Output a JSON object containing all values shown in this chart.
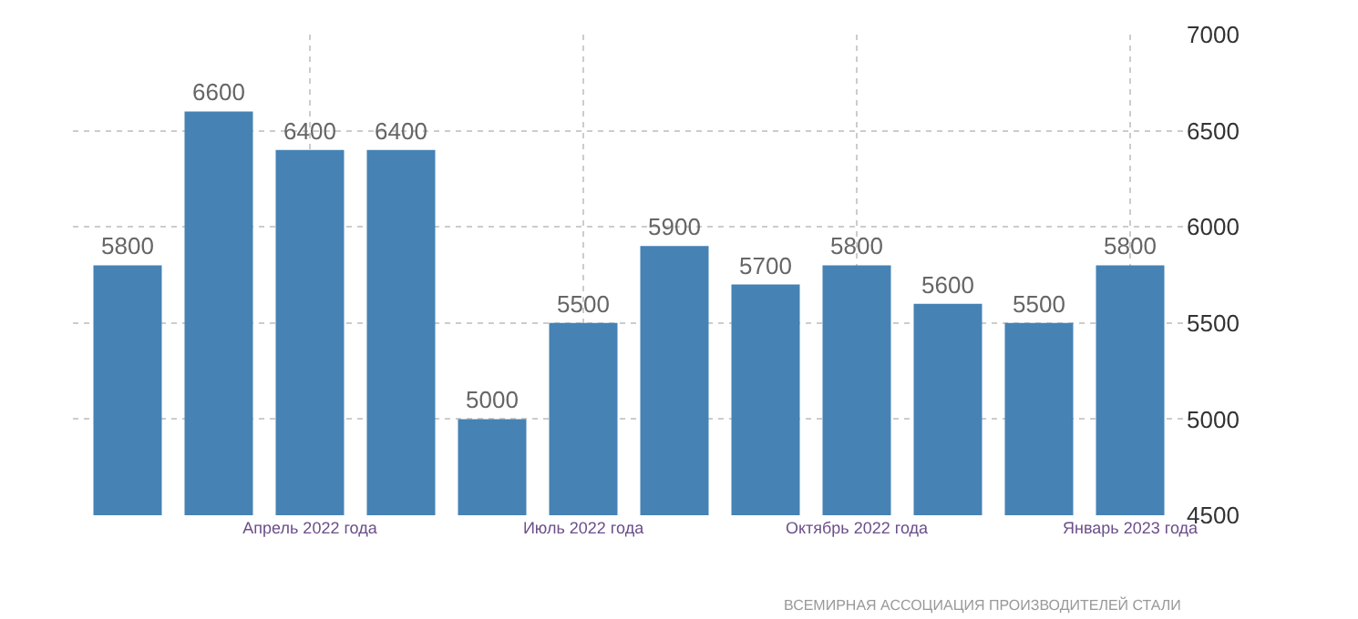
{
  "chart_data": {
    "type": "bar",
    "categories": [
      null,
      null,
      "Апрель 2022 года",
      null,
      null,
      "Июль 2022 года",
      null,
      null,
      "Октябрь 2022 года",
      null,
      null,
      "Январь 2023 года"
    ],
    "values": [
      5800,
      6600,
      6400,
      6400,
      5000,
      5500,
      5900,
      5700,
      5800,
      5600,
      5500,
      5800
    ],
    "color": "#4682b4",
    "ylim": [
      4500,
      7000
    ],
    "yticks": [
      4500,
      5000,
      5500,
      6000,
      6500,
      7000
    ],
    "grid": true,
    "data_labels": true,
    "legend": false,
    "annotations": [
      "ВСЕМИРНАЯ АССОЦИАЦИЯ ПРОИЗВОДИТЕЛЕЙ СТАЛИ"
    ]
  }
}
